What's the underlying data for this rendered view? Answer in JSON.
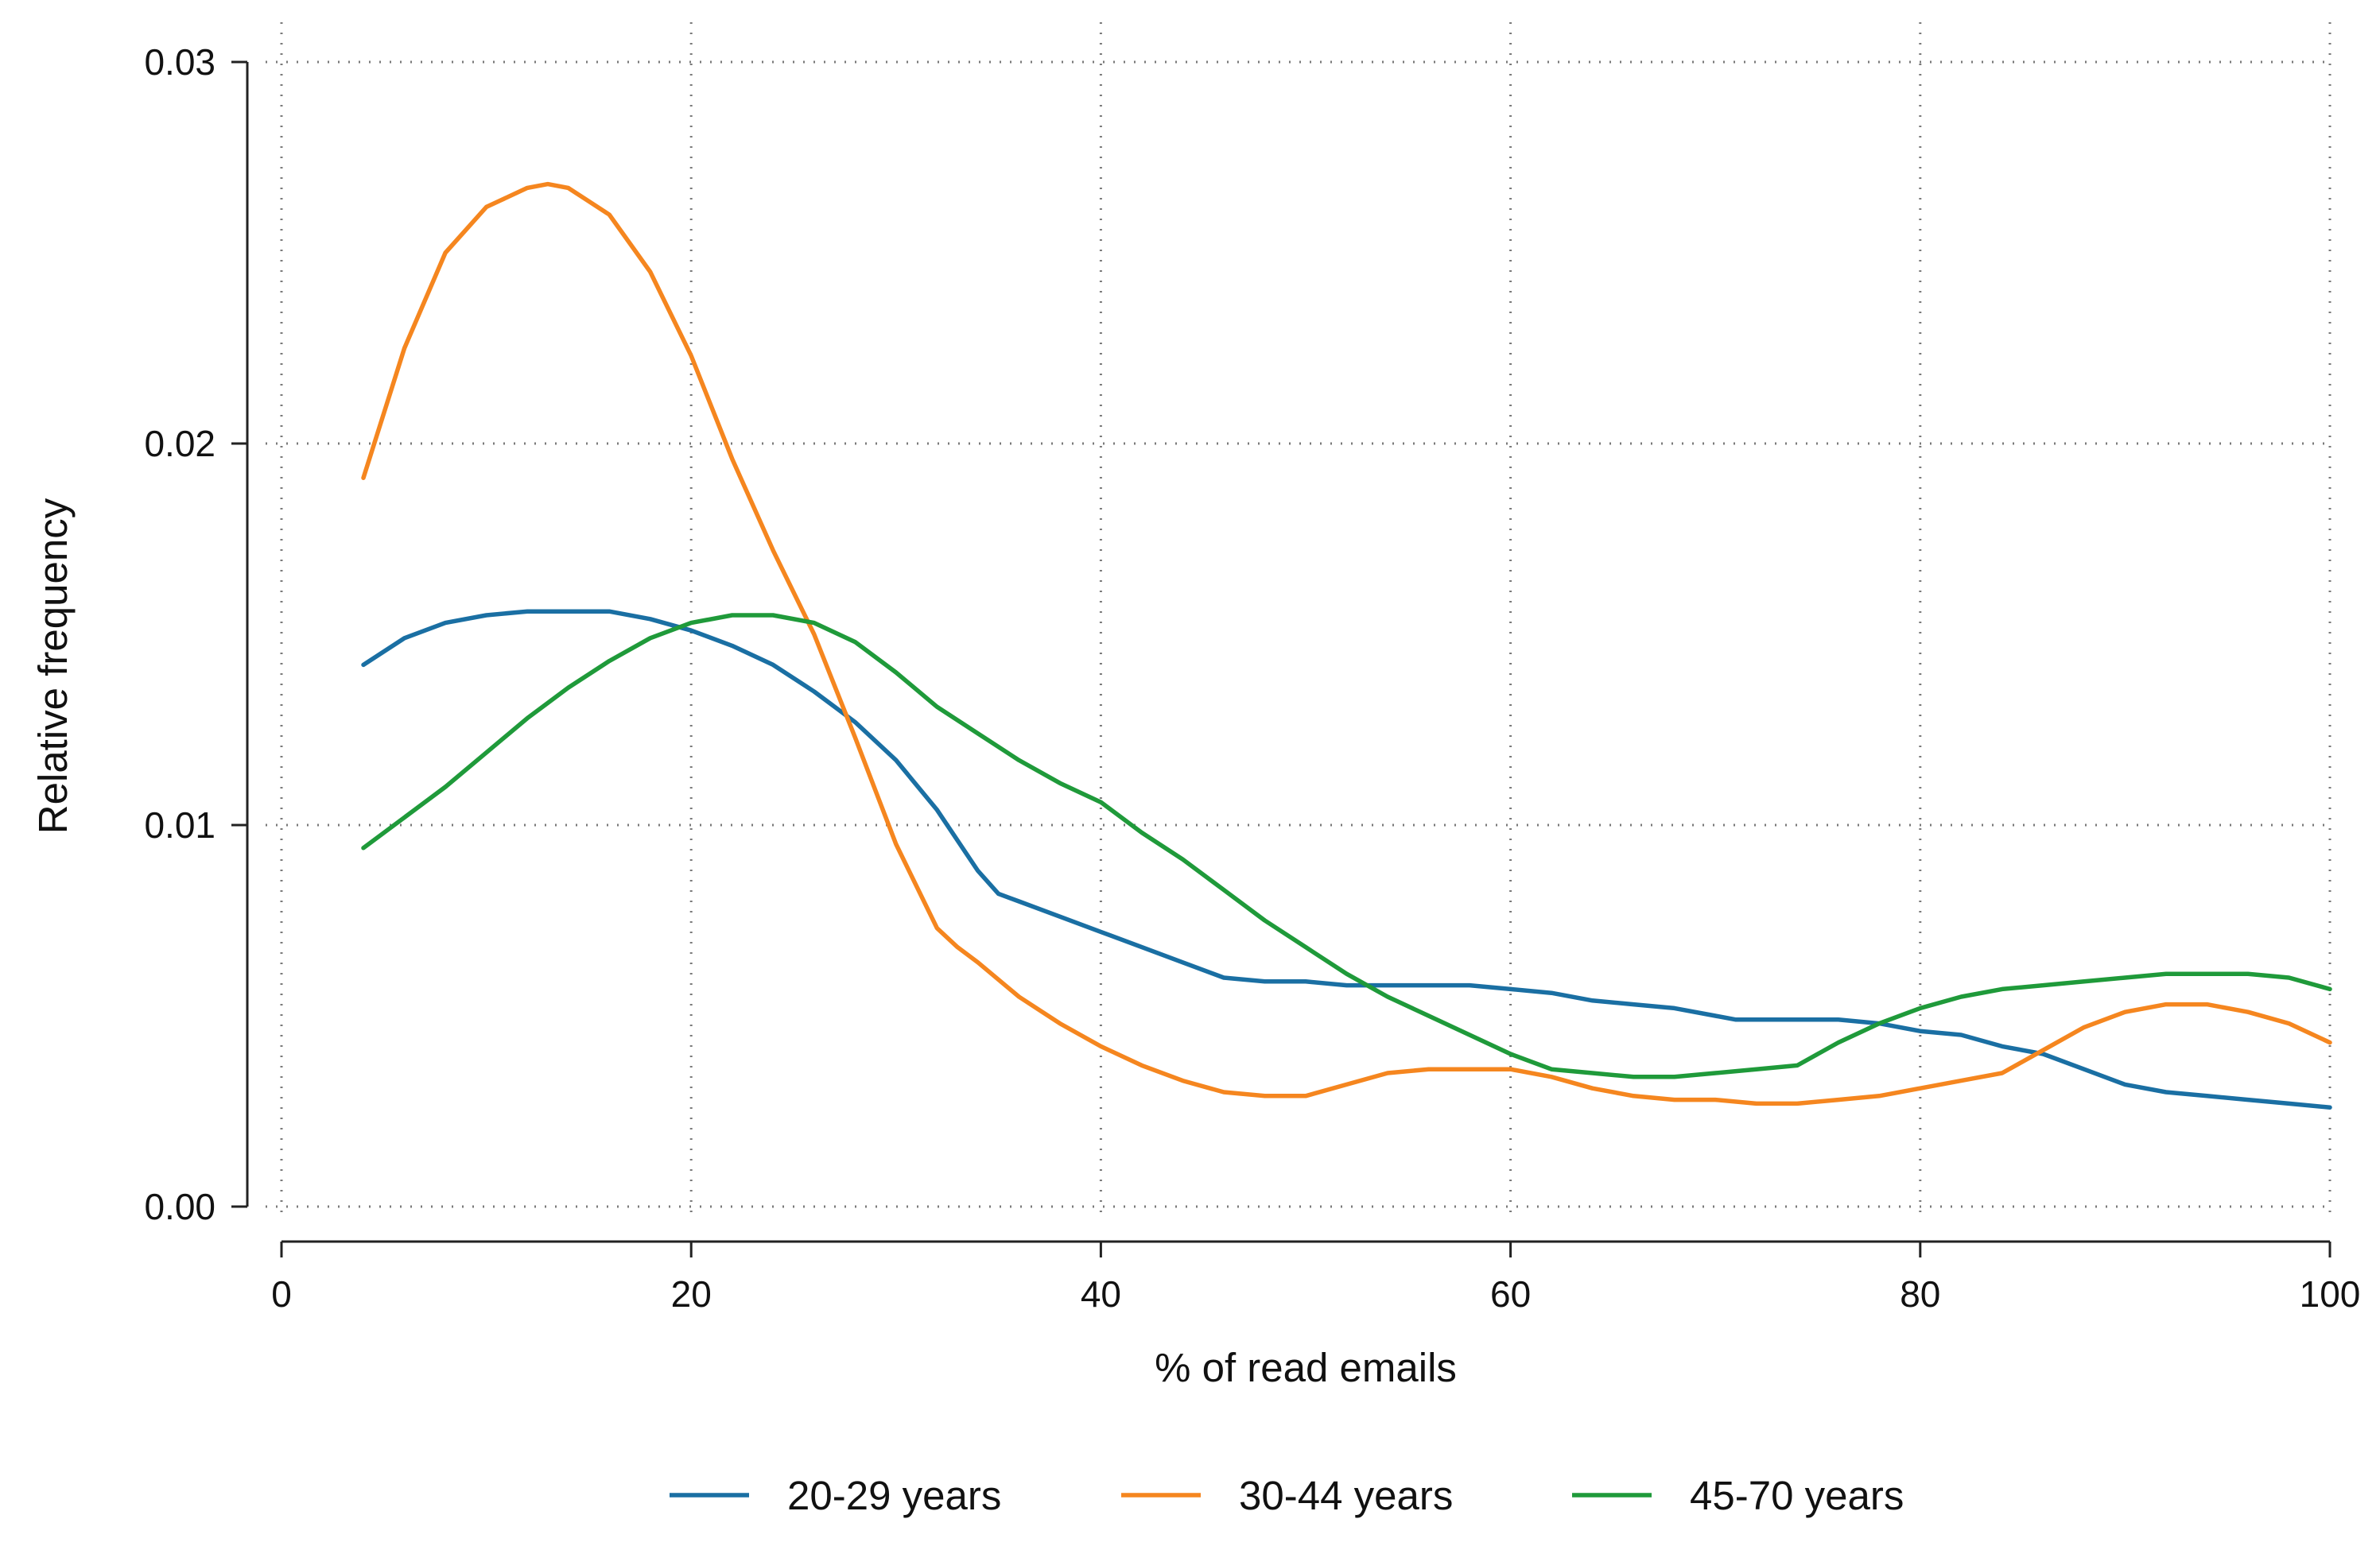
{
  "chart_data": {
    "type": "line",
    "title": "",
    "xlabel": "% of read emails",
    "ylabel": "Relative frequency",
    "xlim": [
      0,
      100
    ],
    "ylim": [
      0,
      0.03
    ],
    "x_ticks": [
      0,
      20,
      40,
      60,
      80,
      100
    ],
    "x_tick_labels": [
      "0",
      "20",
      "40",
      "60",
      "80",
      "100"
    ],
    "y_ticks": [
      0,
      0.01,
      0.02,
      0.03
    ],
    "y_tick_labels": [
      "0.00",
      "0.01",
      "0.02",
      "0.03"
    ],
    "grid": true,
    "legend_position": "bottom",
    "series": [
      {
        "name": "20-29 years",
        "color": "#1a6fa3",
        "x": [
          4,
          6,
          8,
          10,
          12,
          14,
          16,
          18,
          20,
          22,
          24,
          26,
          28,
          30,
          32,
          34,
          35,
          36,
          38,
          40,
          42,
          44,
          46,
          48,
          50,
          52,
          54,
          56,
          58,
          60,
          62,
          64,
          66,
          68,
          70,
          71,
          72,
          74,
          76,
          78,
          80,
          82,
          84,
          86,
          88,
          90,
          92,
          94,
          96,
          98,
          100
        ],
        "values": [
          0.0142,
          0.0149,
          0.0153,
          0.0155,
          0.0156,
          0.0156,
          0.0156,
          0.0154,
          0.0151,
          0.0147,
          0.0142,
          0.0135,
          0.0127,
          0.0117,
          0.0104,
          0.0088,
          0.0082,
          0.008,
          0.0076,
          0.0072,
          0.0068,
          0.0064,
          0.006,
          0.0059,
          0.0059,
          0.0058,
          0.0058,
          0.0058,
          0.0058,
          0.0057,
          0.0056,
          0.0054,
          0.0053,
          0.0052,
          0.005,
          0.0049,
          0.0049,
          0.0049,
          0.0049,
          0.0048,
          0.0046,
          0.0045,
          0.0042,
          0.004,
          0.0036,
          0.0032,
          0.003,
          0.0029,
          0.0028,
          0.0027,
          0.0026
        ]
      },
      {
        "name": "30-44 years",
        "color": "#f5861f",
        "x": [
          4,
          6,
          8,
          10,
          12,
          13,
          14,
          16,
          18,
          20,
          22,
          24,
          26,
          28,
          30,
          32,
          33,
          34,
          36,
          38,
          40,
          42,
          44,
          46,
          48,
          50,
          52,
          54,
          56,
          58,
          60,
          62,
          64,
          66,
          68,
          70,
          72,
          74,
          76,
          78,
          80,
          82,
          84,
          86,
          88,
          90,
          92,
          94,
          96,
          98,
          100
        ],
        "values": [
          0.0191,
          0.0225,
          0.025,
          0.0262,
          0.0267,
          0.0268,
          0.0267,
          0.026,
          0.0245,
          0.0223,
          0.0196,
          0.0172,
          0.015,
          0.0123,
          0.0095,
          0.0073,
          0.0068,
          0.0064,
          0.0055,
          0.0048,
          0.0042,
          0.0037,
          0.0033,
          0.003,
          0.0029,
          0.0029,
          0.0032,
          0.0035,
          0.0036,
          0.0036,
          0.0036,
          0.0034,
          0.0031,
          0.0029,
          0.0028,
          0.0028,
          0.0027,
          0.0027,
          0.0028,
          0.0029,
          0.0031,
          0.0033,
          0.0035,
          0.0041,
          0.0047,
          0.0051,
          0.0053,
          0.0053,
          0.0051,
          0.0048,
          0.0043
        ]
      },
      {
        "name": "45-70 years",
        "color": "#1f9a3a",
        "x": [
          4,
          6,
          8,
          10,
          12,
          14,
          16,
          18,
          20,
          22,
          23,
          24,
          26,
          28,
          30,
          32,
          34,
          36,
          38,
          40,
          42,
          44,
          46,
          48,
          50,
          52,
          54,
          56,
          58,
          60,
          62,
          64,
          66,
          68,
          70,
          72,
          74,
          76,
          78,
          80,
          82,
          84,
          86,
          88,
          90,
          92,
          94,
          96,
          98,
          100
        ],
        "values": [
          0.0094,
          0.0102,
          0.011,
          0.0119,
          0.0128,
          0.0136,
          0.0143,
          0.0149,
          0.0153,
          0.0155,
          0.0155,
          0.0155,
          0.0153,
          0.0148,
          0.014,
          0.0131,
          0.0124,
          0.0117,
          0.0111,
          0.0106,
          0.0098,
          0.0091,
          0.0083,
          0.0075,
          0.0068,
          0.0061,
          0.0055,
          0.005,
          0.0045,
          0.004,
          0.0036,
          0.0035,
          0.0034,
          0.0034,
          0.0035,
          0.0036,
          0.0037,
          0.0043,
          0.0048,
          0.0052,
          0.0055,
          0.0057,
          0.0058,
          0.0059,
          0.006,
          0.0061,
          0.0061,
          0.0061,
          0.006,
          0.0057
        ]
      }
    ]
  }
}
